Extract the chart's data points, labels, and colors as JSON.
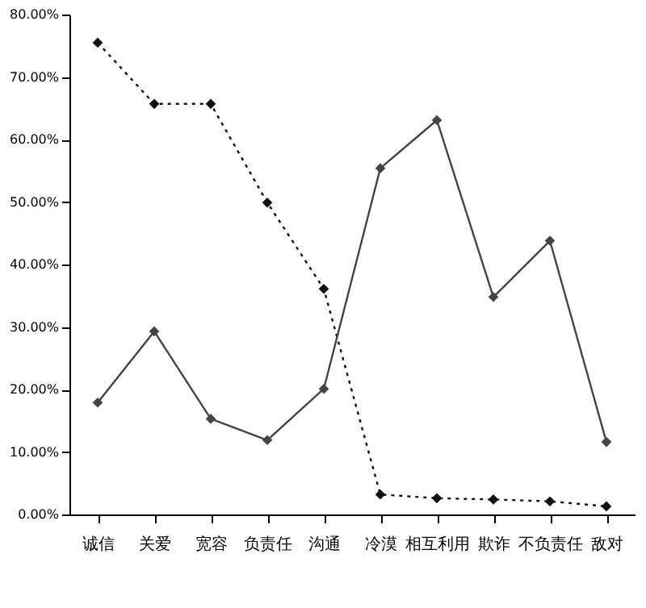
{
  "chart_data": {
    "type": "line",
    "categories": [
      "诚信",
      "关爱",
      "宽容",
      "负责任",
      "沟通",
      "冷漠",
      "相互利用",
      "欺诈",
      "不负责任",
      "敌对"
    ],
    "series": [
      {
        "color": "#111111",
        "line_style": "dotted",
        "marker": "diamond",
        "values": [
          75.5,
          65.7,
          65.7,
          49.9,
          36.1,
          3.2,
          2.6,
          2.4,
          2.1,
          1.3
        ]
      },
      {
        "color": "#444444",
        "line_style": "solid",
        "marker": "diamond",
        "values": [
          17.9,
          29.3,
          15.3,
          11.9,
          20.1,
          55.4,
          63.1,
          34.8,
          43.8,
          11.6
        ]
      }
    ],
    "ylim": [
      0,
      80
    ],
    "yticks": [
      {
        "value": 0,
        "label": "0.00%"
      },
      {
        "value": 10,
        "label": "10.00%"
      },
      {
        "value": 20,
        "label": "20.00%"
      },
      {
        "value": 30,
        "label": "30.00%"
      },
      {
        "value": 40,
        "label": "40.00%"
      },
      {
        "value": 50,
        "label": "50.00%"
      },
      {
        "value": 60,
        "label": "60.00%"
      },
      {
        "value": 70,
        "label": "70.00%"
      },
      {
        "value": 80,
        "label": "80.00%"
      }
    ],
    "grid": false
  }
}
